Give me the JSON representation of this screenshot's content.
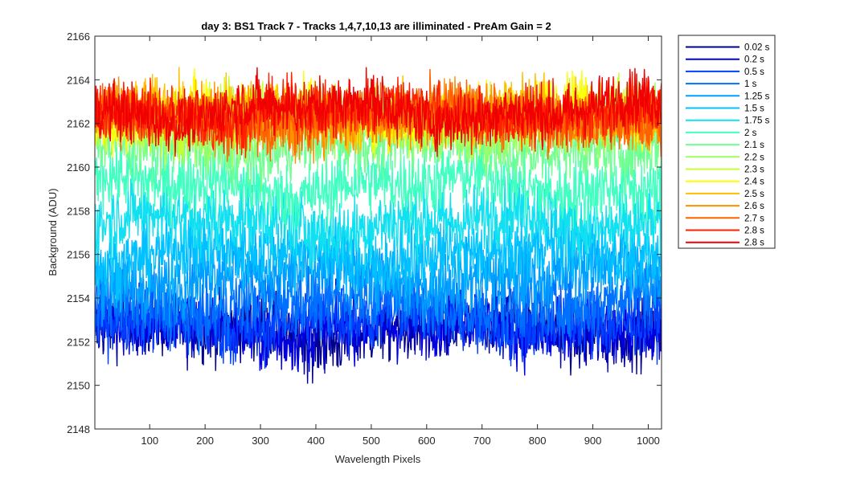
{
  "chart_data": {
    "type": "line",
    "title": "day 3: BS1  Track 7 - Tracks 1,4,7,10,13 are illiminated - PreAm Gain = 2",
    "xlabel": "Wavelength Pixels",
    "ylabel": "Background (ADU)",
    "xlim": [
      1,
      1024
    ],
    "ylim": [
      2148,
      2166
    ],
    "x_ticks": [
      100,
      200,
      300,
      400,
      500,
      600,
      700,
      800,
      900,
      1000
    ],
    "y_ticks": [
      2148,
      2150,
      2152,
      2154,
      2156,
      2158,
      2160,
      2162,
      2164,
      2166
    ],
    "grid": false,
    "legend_position": "outside-right-top",
    "x_start": 1,
    "x_end": 1024,
    "series": [
      {
        "name": "0.02 s",
        "color": "#00008f",
        "mean": 2152.5,
        "spread": 1.4
      },
      {
        "name": "0.2 s",
        "color": "#0000e0",
        "mean": 2152.6,
        "spread": 1.4
      },
      {
        "name": "0.5 s",
        "color": "#0040ff",
        "mean": 2153.0,
        "spread": 1.4
      },
      {
        "name": "1 s",
        "color": "#0070ff",
        "mean": 2153.8,
        "spread": 1.5
      },
      {
        "name": "1.25 s",
        "color": "#009fff",
        "mean": 2155.0,
        "spread": 1.5
      },
      {
        "name": "1.5 s",
        "color": "#00c0ff",
        "mean": 2156.0,
        "spread": 1.5
      },
      {
        "name": "1.75 s",
        "color": "#10e0f0",
        "mean": 2157.5,
        "spread": 1.5
      },
      {
        "name": "2 s",
        "color": "#40ffc0",
        "mean": 2159.2,
        "spread": 1.4
      },
      {
        "name": "2.1 s",
        "color": "#70ff90",
        "mean": 2161.0,
        "spread": 1.3
      },
      {
        "name": "2.2 s",
        "color": "#a0ff60",
        "mean": 2161.8,
        "spread": 1.2
      },
      {
        "name": "2.3 s",
        "color": "#c8ff30",
        "mean": 2162.3,
        "spread": 1.2
      },
      {
        "name": "2.4 s",
        "color": "#ffff00",
        "mean": 2162.5,
        "spread": 1.2
      },
      {
        "name": "2.5 s",
        "color": "#ffc000",
        "mean": 2162.4,
        "spread": 1.2
      },
      {
        "name": "2.6 s",
        "color": "#ff9000",
        "mean": 2162.2,
        "spread": 1.2
      },
      {
        "name": "2.7 s",
        "color": "#ff6000",
        "mean": 2162.3,
        "spread": 1.2
      },
      {
        "name": "2.8 s",
        "color": "#ff2000",
        "mean": 2162.5,
        "spread": 1.2
      },
      {
        "name": "2.8 s",
        "color": "#f00000",
        "mean": 2162.6,
        "spread": 1.2
      }
    ]
  }
}
